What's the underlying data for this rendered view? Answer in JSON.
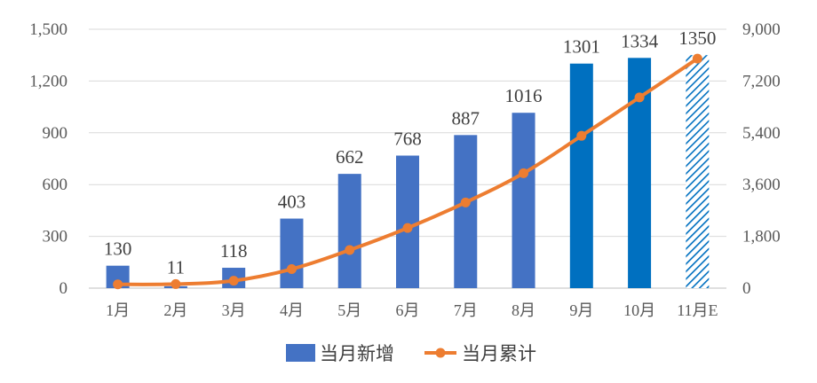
{
  "chart_data": {
    "type": "bar",
    "categories": [
      "1月",
      "2月",
      "3月",
      "4月",
      "5月",
      "6月",
      "7月",
      "8月",
      "9月",
      "10月",
      "11月E"
    ],
    "series": [
      {
        "name": "当月新增",
        "type": "bar",
        "axis": "left",
        "values": [
          130,
          11,
          118,
          403,
          662,
          768,
          887,
          1016,
          1301,
          1334,
          1350
        ],
        "labels": [
          "130",
          "11",
          "118",
          "403",
          "662",
          "768",
          "887",
          "1016",
          "1301",
          "1334",
          "1350"
        ],
        "colors": [
          "#4472c4",
          "#4472c4",
          "#4472c4",
          "#4472c4",
          "#4472c4",
          "#4472c4",
          "#4472c4",
          "#4472c4",
          "#0070c0",
          "#0070c0",
          "hatched"
        ]
      },
      {
        "name": "当月累计",
        "type": "line",
        "axis": "right",
        "color": "#ed7d31",
        "values": [
          130,
          141,
          259,
          662,
          1324,
          2092,
          2979,
          3995,
          5296,
          6630,
          7980
        ]
      }
    ],
    "y_left": {
      "min": 0,
      "max": 1500,
      "ticks": [
        "0",
        "300",
        "600",
        "900",
        "1,200",
        "1,500"
      ],
      "tick_values": [
        0,
        300,
        600,
        900,
        1200,
        1500
      ]
    },
    "y_right": {
      "min": 0,
      "max": 9000,
      "ticks": [
        "0",
        "1,800",
        "3,600",
        "5,400",
        "7,200",
        "9,000"
      ],
      "tick_values": [
        0,
        1800,
        3600,
        5400,
        7200,
        9000
      ]
    },
    "grid": true,
    "legend_position": "bottom-center",
    "title": "",
    "xlabel": "",
    "ylabel": ""
  },
  "colors": {
    "bar_standard": "#4472c4",
    "bar_highlight": "#0070c0",
    "line": "#ed7d31",
    "grid": "#d9d9d9",
    "axis_text": "#595959"
  }
}
